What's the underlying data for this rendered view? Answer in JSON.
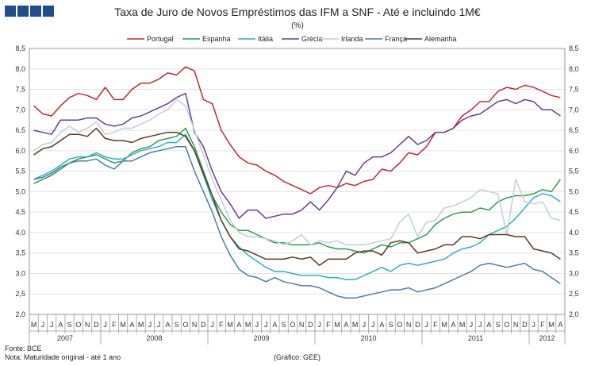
{
  "logo_color": "#1f4e8c",
  "source_label": "Fonte: BCE",
  "note_label": "Nota: Maturidade original - até 1 ano",
  "credit_label": "(Gráfico: GEE)",
  "chart_data": {
    "type": "line",
    "title": "Taxa de Juro de Novos Empréstimos  das IFM a SNF - Até e incluindo 1M€",
    "subtitle": "(%)",
    "ylim": [
      2.0,
      8.5
    ],
    "yticks": [
      "2,0",
      "2,5",
      "3,0",
      "3,5",
      "4,0",
      "4,5",
      "5,0",
      "5,5",
      "6,0",
      "6,5",
      "7,0",
      "7,5",
      "8,0",
      "8,5"
    ],
    "grid": true,
    "legend_position": "top",
    "months": [
      "M",
      "J",
      "J",
      "A",
      "S",
      "O",
      "N",
      "D",
      "J",
      "F",
      "M",
      "A",
      "M",
      "J",
      "J",
      "A",
      "S",
      "O",
      "N",
      "D",
      "J",
      "F",
      "M",
      "A",
      "M",
      "J",
      "J",
      "A",
      "S",
      "O",
      "N",
      "D",
      "J",
      "F",
      "M",
      "A",
      "M",
      "J",
      "J",
      "A",
      "S",
      "O",
      "N",
      "D",
      "J",
      "F",
      "M",
      "A",
      "M",
      "J",
      "J",
      "A",
      "S",
      "O",
      "N",
      "D",
      "J",
      "F",
      "M",
      "A"
    ],
    "years": [
      {
        "label": "2007",
        "start": 0,
        "end": 8
      },
      {
        "label": "2008",
        "start": 8,
        "end": 20
      },
      {
        "label": "2009",
        "start": 20,
        "end": 32
      },
      {
        "label": "2010",
        "start": 32,
        "end": 44
      },
      {
        "label": "2011",
        "start": 44,
        "end": 56
      },
      {
        "label": "2012",
        "start": 56,
        "end": 60
      }
    ],
    "series": [
      {
        "name": "Portugal",
        "color": "#c0282d",
        "values": [
          7.1,
          6.9,
          6.85,
          7.1,
          7.3,
          7.4,
          7.35,
          7.25,
          7.55,
          7.25,
          7.25,
          7.5,
          7.65,
          7.65,
          7.75,
          7.9,
          7.85,
          8.05,
          7.95,
          7.25,
          7.15,
          6.5,
          6.15,
          5.85,
          5.7,
          5.65,
          5.5,
          5.4,
          5.25,
          5.15,
          5.05,
          4.95,
          5.1,
          5.15,
          5.1,
          5.2,
          5.15,
          5.25,
          5.3,
          5.55,
          5.5,
          5.7,
          5.95,
          5.9,
          6.1,
          6.45,
          6.45,
          6.55,
          6.85,
          7.0,
          7.2,
          7.2,
          7.45,
          7.55,
          7.5,
          7.6,
          7.55,
          7.45,
          7.35,
          7.3
        ]
      },
      {
        "name": "Espanha",
        "color": "#2e9e4f",
        "values": [
          5.2,
          5.3,
          5.4,
          5.55,
          5.7,
          5.8,
          5.85,
          5.9,
          5.8,
          5.7,
          5.75,
          5.95,
          6.05,
          6.1,
          6.25,
          6.3,
          6.35,
          6.55,
          6.1,
          5.5,
          4.9,
          4.5,
          4.2,
          4.05,
          4.05,
          3.95,
          3.85,
          3.75,
          3.75,
          3.7,
          3.7,
          3.7,
          3.75,
          3.65,
          3.6,
          3.6,
          3.55,
          3.5,
          3.6,
          3.7,
          3.65,
          3.75,
          3.75,
          3.85,
          3.95,
          4.2,
          4.35,
          4.45,
          4.5,
          4.5,
          4.6,
          4.55,
          4.75,
          4.85,
          4.9,
          4.9,
          4.95,
          5.05,
          5.0,
          5.3
        ]
      },
      {
        "name": "Itália",
        "color": "#2ab0c8",
        "values": [
          5.3,
          5.4,
          5.5,
          5.65,
          5.8,
          5.85,
          5.85,
          5.95,
          5.85,
          5.8,
          5.8,
          5.9,
          6.0,
          6.05,
          6.1,
          6.2,
          6.2,
          6.4,
          6.0,
          5.4,
          4.8,
          4.3,
          3.9,
          3.65,
          3.45,
          3.3,
          3.15,
          3.05,
          3.05,
          3.0,
          2.95,
          2.95,
          2.95,
          2.9,
          2.9,
          2.85,
          2.85,
          2.95,
          3.05,
          3.15,
          3.05,
          3.2,
          3.25,
          3.2,
          3.25,
          3.3,
          3.35,
          3.5,
          3.6,
          3.65,
          3.75,
          3.95,
          4.05,
          4.15,
          4.35,
          4.6,
          4.85,
          4.95,
          4.9,
          4.75
        ]
      },
      {
        "name": "Grécia",
        "color": "#6b3c94",
        "values": [
          6.5,
          6.45,
          6.4,
          6.75,
          6.75,
          6.75,
          6.8,
          6.8,
          6.65,
          6.6,
          6.65,
          6.8,
          6.85,
          6.95,
          7.05,
          7.15,
          7.3,
          7.4,
          6.45,
          6.1,
          5.5,
          5.0,
          4.7,
          4.35,
          4.55,
          4.55,
          4.35,
          4.4,
          4.45,
          4.45,
          4.55,
          4.75,
          4.55,
          4.8,
          5.1,
          5.5,
          5.4,
          5.7,
          5.85,
          5.85,
          5.95,
          6.15,
          6.35,
          6.15,
          6.25,
          6.45,
          6.45,
          6.55,
          6.75,
          6.85,
          6.9,
          7.05,
          7.2,
          7.25,
          7.15,
          7.25,
          7.2,
          7.0,
          7.0,
          6.85
        ]
      },
      {
        "name": "Irlanda",
        "color": "#c4cdd8",
        "values": [
          6.0,
          6.15,
          6.2,
          6.45,
          6.6,
          6.45,
          6.55,
          6.7,
          6.4,
          6.45,
          6.55,
          6.55,
          6.65,
          6.75,
          6.9,
          7.0,
          7.25,
          7.1,
          6.5,
          5.9,
          5.3,
          4.8,
          4.3,
          4.0,
          3.9,
          3.9,
          3.85,
          3.8,
          3.7,
          3.8,
          3.95,
          3.7,
          3.8,
          3.75,
          3.8,
          3.7,
          3.7,
          3.7,
          3.75,
          3.8,
          3.85,
          4.25,
          4.45,
          3.9,
          4.25,
          4.3,
          4.6,
          4.65,
          4.75,
          4.85,
          5.05,
          5.0,
          4.95,
          3.95,
          5.3,
          4.75,
          4.7,
          4.75,
          4.35,
          4.3
        ]
      },
      {
        "name": "França",
        "color": "#4a7da0",
        "values": [
          5.3,
          5.35,
          5.45,
          5.6,
          5.7,
          5.75,
          5.75,
          5.8,
          5.65,
          5.55,
          5.75,
          5.75,
          5.85,
          5.95,
          6.0,
          6.05,
          6.1,
          6.1,
          5.5,
          5.0,
          4.5,
          3.9,
          3.45,
          3.1,
          2.95,
          2.9,
          2.8,
          2.9,
          2.8,
          2.75,
          2.7,
          2.7,
          2.65,
          2.55,
          2.45,
          2.4,
          2.4,
          2.45,
          2.5,
          2.55,
          2.6,
          2.6,
          2.65,
          2.55,
          2.6,
          2.65,
          2.75,
          2.85,
          2.95,
          3.05,
          3.2,
          3.25,
          3.2,
          3.15,
          3.2,
          3.25,
          3.1,
          3.05,
          2.9,
          2.75
        ]
      },
      {
        "name": "Alemanha",
        "color": "#5b3a1e",
        "values": [
          5.9,
          6.05,
          6.1,
          6.25,
          6.4,
          6.4,
          6.35,
          6.55,
          6.3,
          6.25,
          6.25,
          6.2,
          6.3,
          6.35,
          6.4,
          6.45,
          6.45,
          6.35,
          6.0,
          5.45,
          4.9,
          4.3,
          3.9,
          3.6,
          3.55,
          3.45,
          3.35,
          3.35,
          3.35,
          3.4,
          3.35,
          3.4,
          3.2,
          3.35,
          3.35,
          3.35,
          3.5,
          3.55,
          3.55,
          3.45,
          3.75,
          3.8,
          3.75,
          3.5,
          3.55,
          3.6,
          3.7,
          3.7,
          3.9,
          3.9,
          3.85,
          3.95,
          3.95,
          3.95,
          3.9,
          3.9,
          3.6,
          3.55,
          3.5,
          3.35
        ]
      }
    ]
  }
}
